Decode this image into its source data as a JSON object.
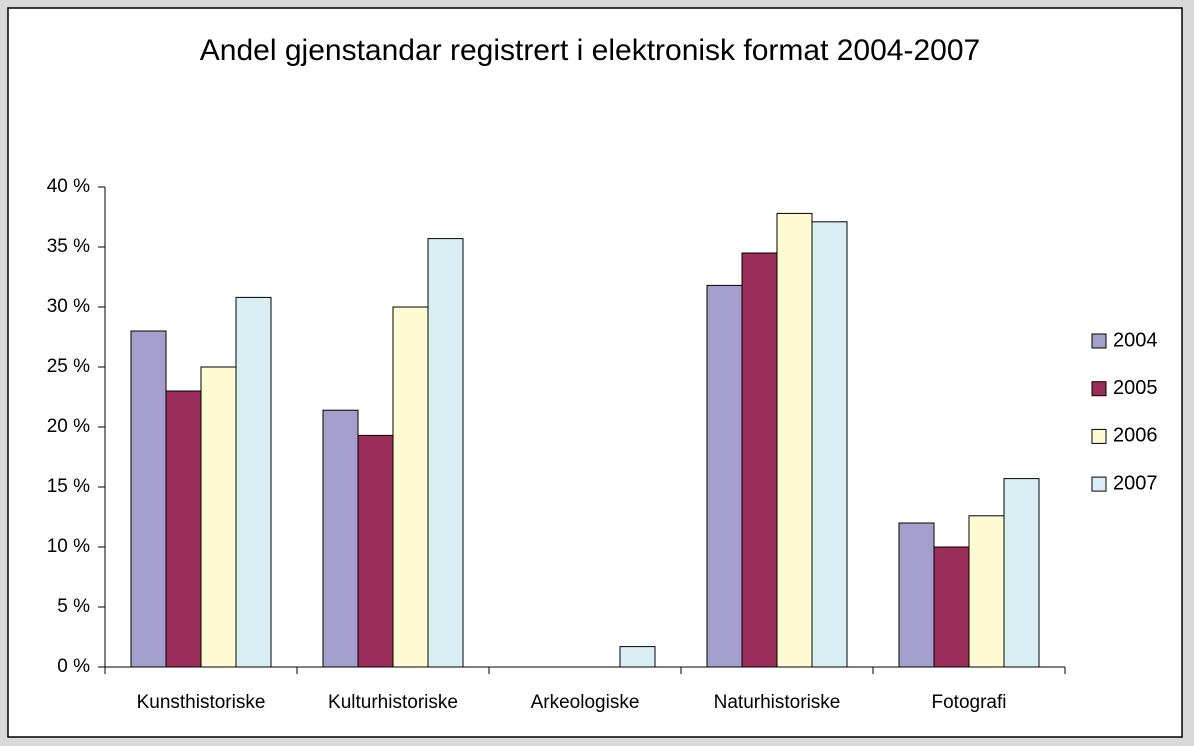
{
  "chart_data": {
    "type": "bar",
    "title": "Andel gjenstandar registrert i elektronisk format 2004-2007",
    "categories": [
      "Kunsthistoriske",
      "Kulturhistoriske",
      "Arkeologiske",
      "Naturhistoriske",
      "Fotografi"
    ],
    "series": [
      {
        "name": "2004",
        "color": "#a49fcc",
        "values": [
          28,
          21.4,
          0,
          31.8,
          12
        ]
      },
      {
        "name": "2005",
        "color": "#9b2d5a",
        "values": [
          23,
          19.3,
          0,
          34.5,
          10
        ]
      },
      {
        "name": "2006",
        "color": "#fefbd3",
        "values": [
          25,
          30,
          0,
          37.8,
          12.6
        ]
      },
      {
        "name": "2007",
        "color": "#daeff3",
        "values": [
          30.8,
          35.7,
          1.7,
          37.1,
          15.7
        ]
      }
    ],
    "ylim": [
      0,
      40
    ],
    "yticks": [
      {
        "value": 0,
        "label": "0 %"
      },
      {
        "value": 5,
        "label": "5 %"
      },
      {
        "value": 10,
        "label": "10 %"
      },
      {
        "value": 15,
        "label": "15 %"
      },
      {
        "value": 20,
        "label": "20 %"
      },
      {
        "value": 25,
        "label": "25 %"
      },
      {
        "value": 30,
        "label": "30 %"
      },
      {
        "value": 35,
        "label": "35 %"
      },
      {
        "value": 40,
        "label": "40 %"
      }
    ],
    "grid": false,
    "legend": "right"
  }
}
